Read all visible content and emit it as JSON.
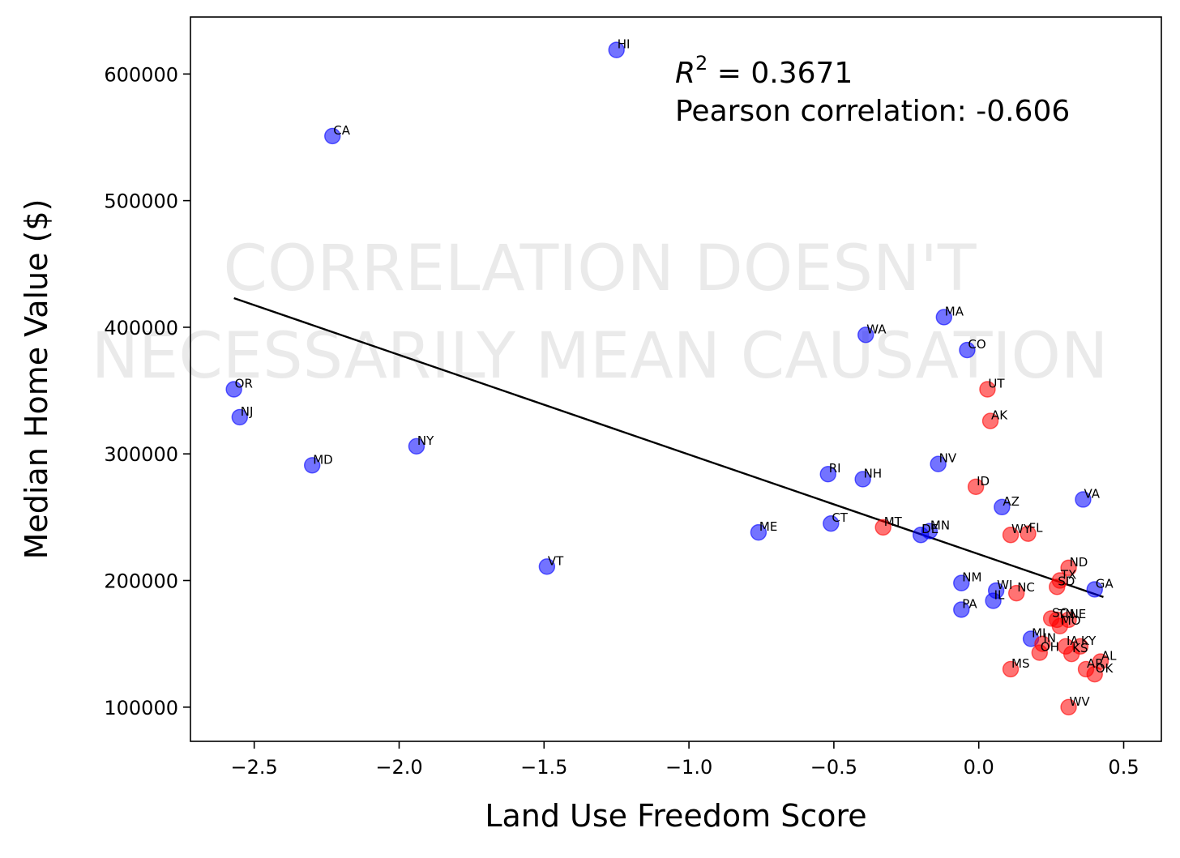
{
  "chart_data": {
    "type": "scatter",
    "xlabel": "Land Use Freedom Score",
    "ylabel": "Median Home Value ($)",
    "xlim": [
      -2.72,
      0.63
    ],
    "ylim": [
      73000,
      645000
    ],
    "xticks": [
      -2.5,
      -2.0,
      -1.5,
      -1.0,
      -0.5,
      0.0,
      0.5
    ],
    "xtick_labels": [
      "−2.5",
      "−2.0",
      "−1.5",
      "−1.0",
      "−0.5",
      "0.0",
      "0.5"
    ],
    "yticks": [
      100000,
      200000,
      300000,
      400000,
      500000,
      600000
    ],
    "ytick_labels": [
      "100000",
      "200000",
      "300000",
      "400000",
      "500000",
      "600000"
    ],
    "grid": false,
    "annotation": {
      "r2_label": "R",
      "r2_exponent": "2",
      "r2_value": " = 0.3671",
      "pearson": "Pearson correlation: -0.606"
    },
    "watermark": {
      "line1": "CORRELATION DOESN'T",
      "line2": "NECESSARILY MEAN CAUSATION"
    },
    "colors": {
      "blue": "#0000ff",
      "red": "#ff0000",
      "trendline": "#000000"
    },
    "trendline": {
      "x": [
        -2.57,
        0.43
      ],
      "y": [
        423000,
        187000
      ]
    },
    "points": [
      {
        "label": "HI",
        "x": -1.25,
        "y": 619000,
        "color": "blue"
      },
      {
        "label": "CA",
        "x": -2.23,
        "y": 551000,
        "color": "blue"
      },
      {
        "label": "OR",
        "x": -2.57,
        "y": 351000,
        "color": "blue"
      },
      {
        "label": "NJ",
        "x": -2.55,
        "y": 329000,
        "color": "blue"
      },
      {
        "label": "MD",
        "x": -2.3,
        "y": 291000,
        "color": "blue"
      },
      {
        "label": "NY",
        "x": -1.94,
        "y": 306000,
        "color": "blue"
      },
      {
        "label": "VT",
        "x": -1.49,
        "y": 211000,
        "color": "blue"
      },
      {
        "label": "ME",
        "x": -0.76,
        "y": 238000,
        "color": "blue"
      },
      {
        "label": "MA",
        "x": -0.12,
        "y": 408000,
        "color": "blue"
      },
      {
        "label": "WA",
        "x": -0.39,
        "y": 394000,
        "color": "blue"
      },
      {
        "label": "CO",
        "x": -0.04,
        "y": 382000,
        "color": "blue"
      },
      {
        "label": "UT",
        "x": 0.03,
        "y": 351000,
        "color": "red"
      },
      {
        "label": "AK",
        "x": 0.04,
        "y": 326000,
        "color": "red"
      },
      {
        "label": "RI",
        "x": -0.52,
        "y": 284000,
        "color": "blue"
      },
      {
        "label": "NH",
        "x": -0.4,
        "y": 280000,
        "color": "blue"
      },
      {
        "label": "NV",
        "x": -0.14,
        "y": 292000,
        "color": "blue"
      },
      {
        "label": "ID",
        "x": -0.01,
        "y": 274000,
        "color": "red"
      },
      {
        "label": "AZ",
        "x": 0.08,
        "y": 258000,
        "color": "blue"
      },
      {
        "label": "VA",
        "x": 0.36,
        "y": 264000,
        "color": "blue"
      },
      {
        "label": "CT",
        "x": -0.51,
        "y": 245000,
        "color": "blue"
      },
      {
        "label": "MT",
        "x": -0.33,
        "y": 242000,
        "color": "red"
      },
      {
        "label": "DE",
        "x": -0.2,
        "y": 236000,
        "color": "blue"
      },
      {
        "label": "MN",
        "x": -0.17,
        "y": 239000,
        "color": "blue"
      },
      {
        "label": "WY",
        "x": 0.11,
        "y": 236000,
        "color": "red"
      },
      {
        "label": "FL",
        "x": 0.17,
        "y": 237000,
        "color": "red"
      },
      {
        "label": "ND",
        "x": 0.31,
        "y": 210000,
        "color": "red"
      },
      {
        "label": "TX",
        "x": 0.28,
        "y": 200000,
        "color": "red"
      },
      {
        "label": "SD",
        "x": 0.27,
        "y": 195000,
        "color": "red"
      },
      {
        "label": "GA",
        "x": 0.4,
        "y": 193000,
        "color": "blue"
      },
      {
        "label": "NM",
        "x": -0.06,
        "y": 198000,
        "color": "blue"
      },
      {
        "label": "WI",
        "x": 0.06,
        "y": 192000,
        "color": "blue"
      },
      {
        "label": "NC",
        "x": 0.13,
        "y": 190000,
        "color": "red"
      },
      {
        "label": "IL",
        "x": 0.05,
        "y": 184000,
        "color": "blue"
      },
      {
        "label": "PA",
        "x": -0.06,
        "y": 177000,
        "color": "blue"
      },
      {
        "label": "SC",
        "x": 0.25,
        "y": 170000,
        "color": "red"
      },
      {
        "label": "TN",
        "x": 0.27,
        "y": 169000,
        "color": "red"
      },
      {
        "label": "NE",
        "x": 0.31,
        "y": 169000,
        "color": "red"
      },
      {
        "label": "MO",
        "x": 0.28,
        "y": 164000,
        "color": "red"
      },
      {
        "label": "MI",
        "x": 0.18,
        "y": 154000,
        "color": "blue"
      },
      {
        "label": "IN",
        "x": 0.22,
        "y": 150000,
        "color": "red"
      },
      {
        "label": "IA",
        "x": 0.3,
        "y": 148000,
        "color": "red"
      },
      {
        "label": "KY",
        "x": 0.35,
        "y": 148000,
        "color": "red"
      },
      {
        "label": "OH",
        "x": 0.21,
        "y": 143000,
        "color": "red"
      },
      {
        "label": "KS",
        "x": 0.32,
        "y": 142000,
        "color": "red"
      },
      {
        "label": "AL",
        "x": 0.42,
        "y": 136000,
        "color": "red"
      },
      {
        "label": "AR",
        "x": 0.37,
        "y": 130000,
        "color": "red"
      },
      {
        "label": "OK",
        "x": 0.4,
        "y": 126000,
        "color": "red"
      },
      {
        "label": "MS",
        "x": 0.11,
        "y": 130000,
        "color": "red"
      },
      {
        "label": "WV",
        "x": 0.31,
        "y": 100000,
        "color": "red"
      }
    ]
  }
}
